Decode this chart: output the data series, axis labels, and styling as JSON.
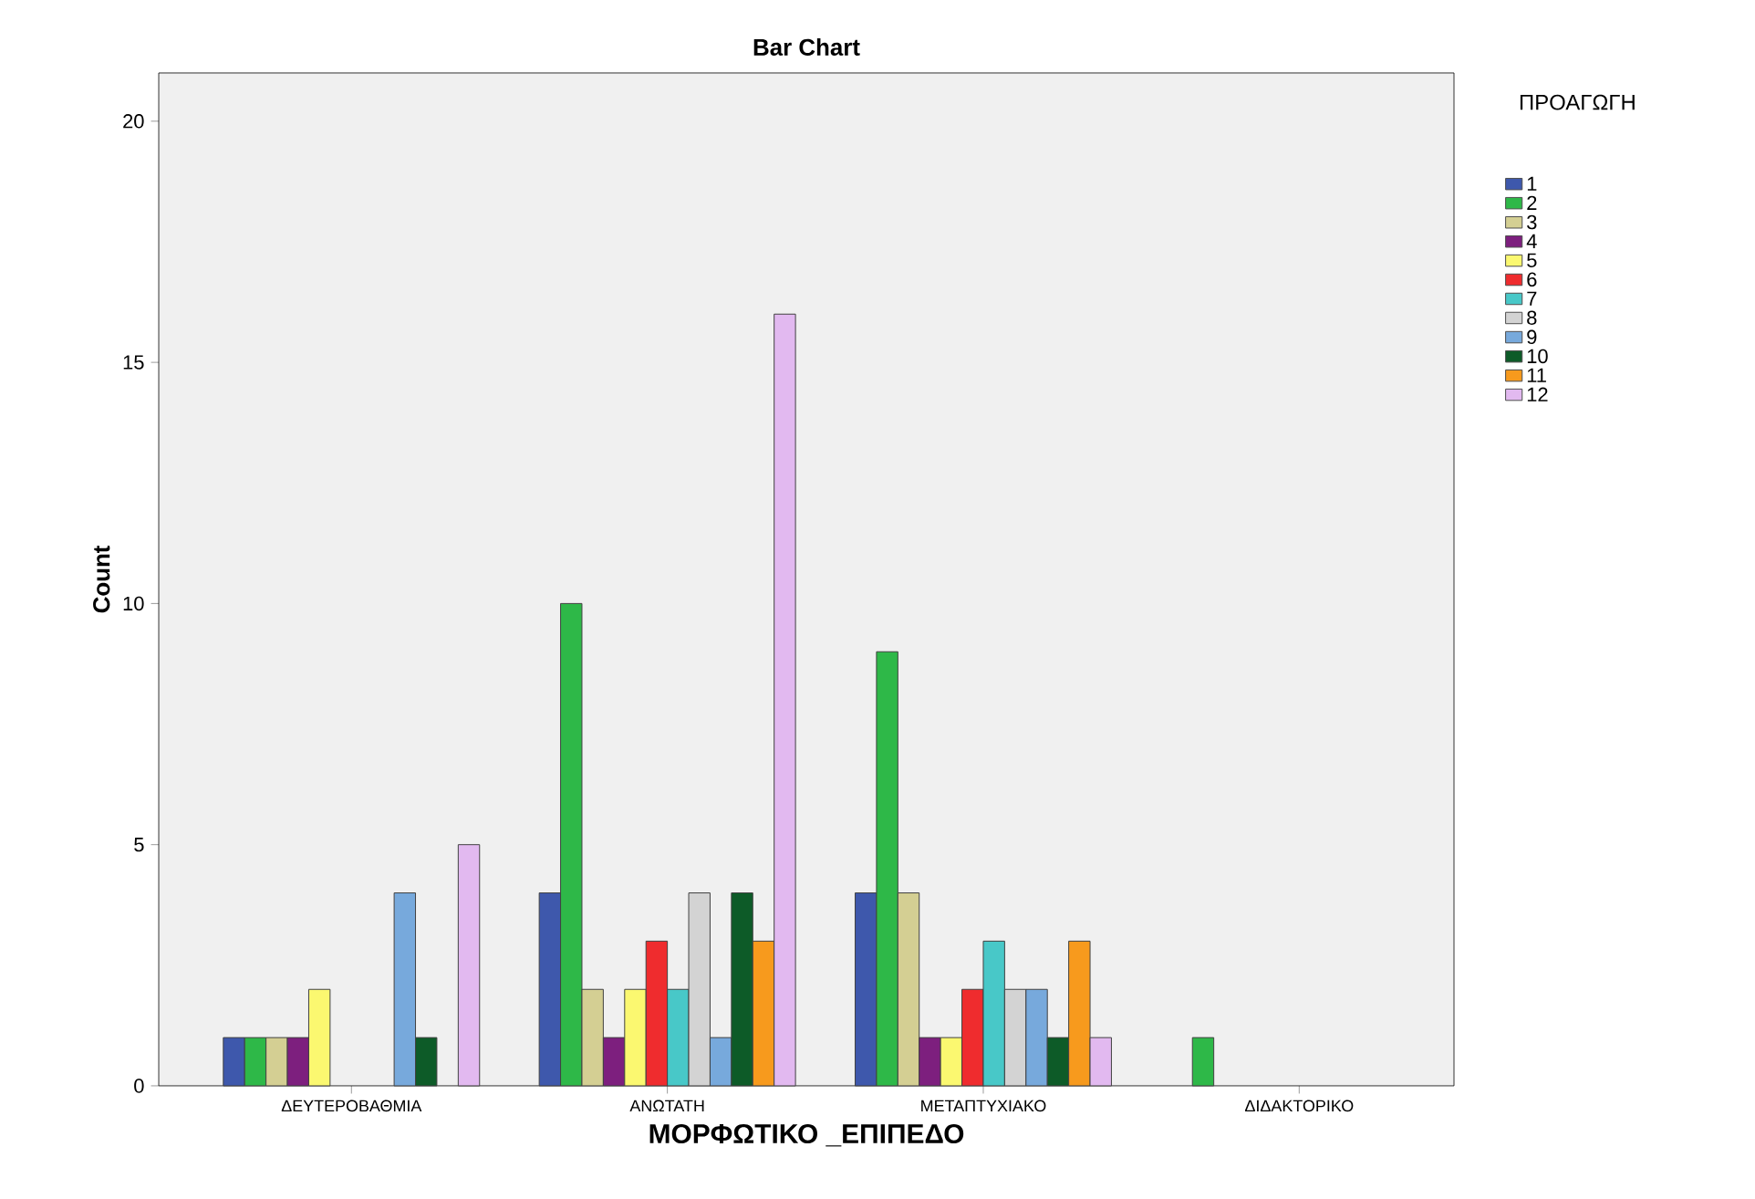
{
  "chart_data": {
    "type": "bar",
    "title": "Bar Chart",
    "xlabel": "ΜΟΡΦΩΤΙΚΟ _ΕΠΙΠΕΔΟ",
    "ylabel": "Count",
    "legend_title": "ΠΡΟΑΓΩΓΗ",
    "categories": [
      "ΔΕΥΤΕΡΟΒΑΘΜΙΑ",
      "ΑΝΩΤΑΤΗ",
      "ΜΕΤΑΠΤΥΧΙΑΚΟ",
      "ΔΙΔΑΚΤΟΡΙΚΟ"
    ],
    "ylim": [
      0,
      21
    ],
    "yticks": [
      0,
      5,
      10,
      15,
      20
    ],
    "grid": false,
    "legend": "top right",
    "series": [
      {
        "name": "1",
        "color": "#3e58ac",
        "values": [
          1,
          4,
          4,
          null
        ]
      },
      {
        "name": "2",
        "color": "#2eb848",
        "values": [
          1,
          10,
          9,
          1
        ]
      },
      {
        "name": "3",
        "color": "#d4cf93",
        "values": [
          1,
          2,
          4,
          null
        ]
      },
      {
        "name": "4",
        "color": "#7d1f7e",
        "values": [
          1,
          1,
          1,
          null
        ]
      },
      {
        "name": "5",
        "color": "#fbf870",
        "values": [
          2,
          2,
          1,
          null
        ]
      },
      {
        "name": "6",
        "color": "#ef2c2e",
        "values": [
          null,
          3,
          2,
          null
        ]
      },
      {
        "name": "7",
        "color": "#48c8c8",
        "values": [
          null,
          2,
          3,
          null
        ]
      },
      {
        "name": "8",
        "color": "#d3d3d3",
        "values": [
          null,
          4,
          2,
          null
        ]
      },
      {
        "name": "9",
        "color": "#77a9dc",
        "values": [
          4,
          1,
          2,
          null
        ]
      },
      {
        "name": "10",
        "color": "#0d5b28",
        "values": [
          1,
          4,
          1,
          null
        ]
      },
      {
        "name": "11",
        "color": "#f79a1d",
        "values": [
          null,
          3,
          3,
          null
        ]
      },
      {
        "name": "12",
        "color": "#e2b9f0",
        "values": [
          5,
          16,
          1,
          null
        ]
      }
    ]
  }
}
